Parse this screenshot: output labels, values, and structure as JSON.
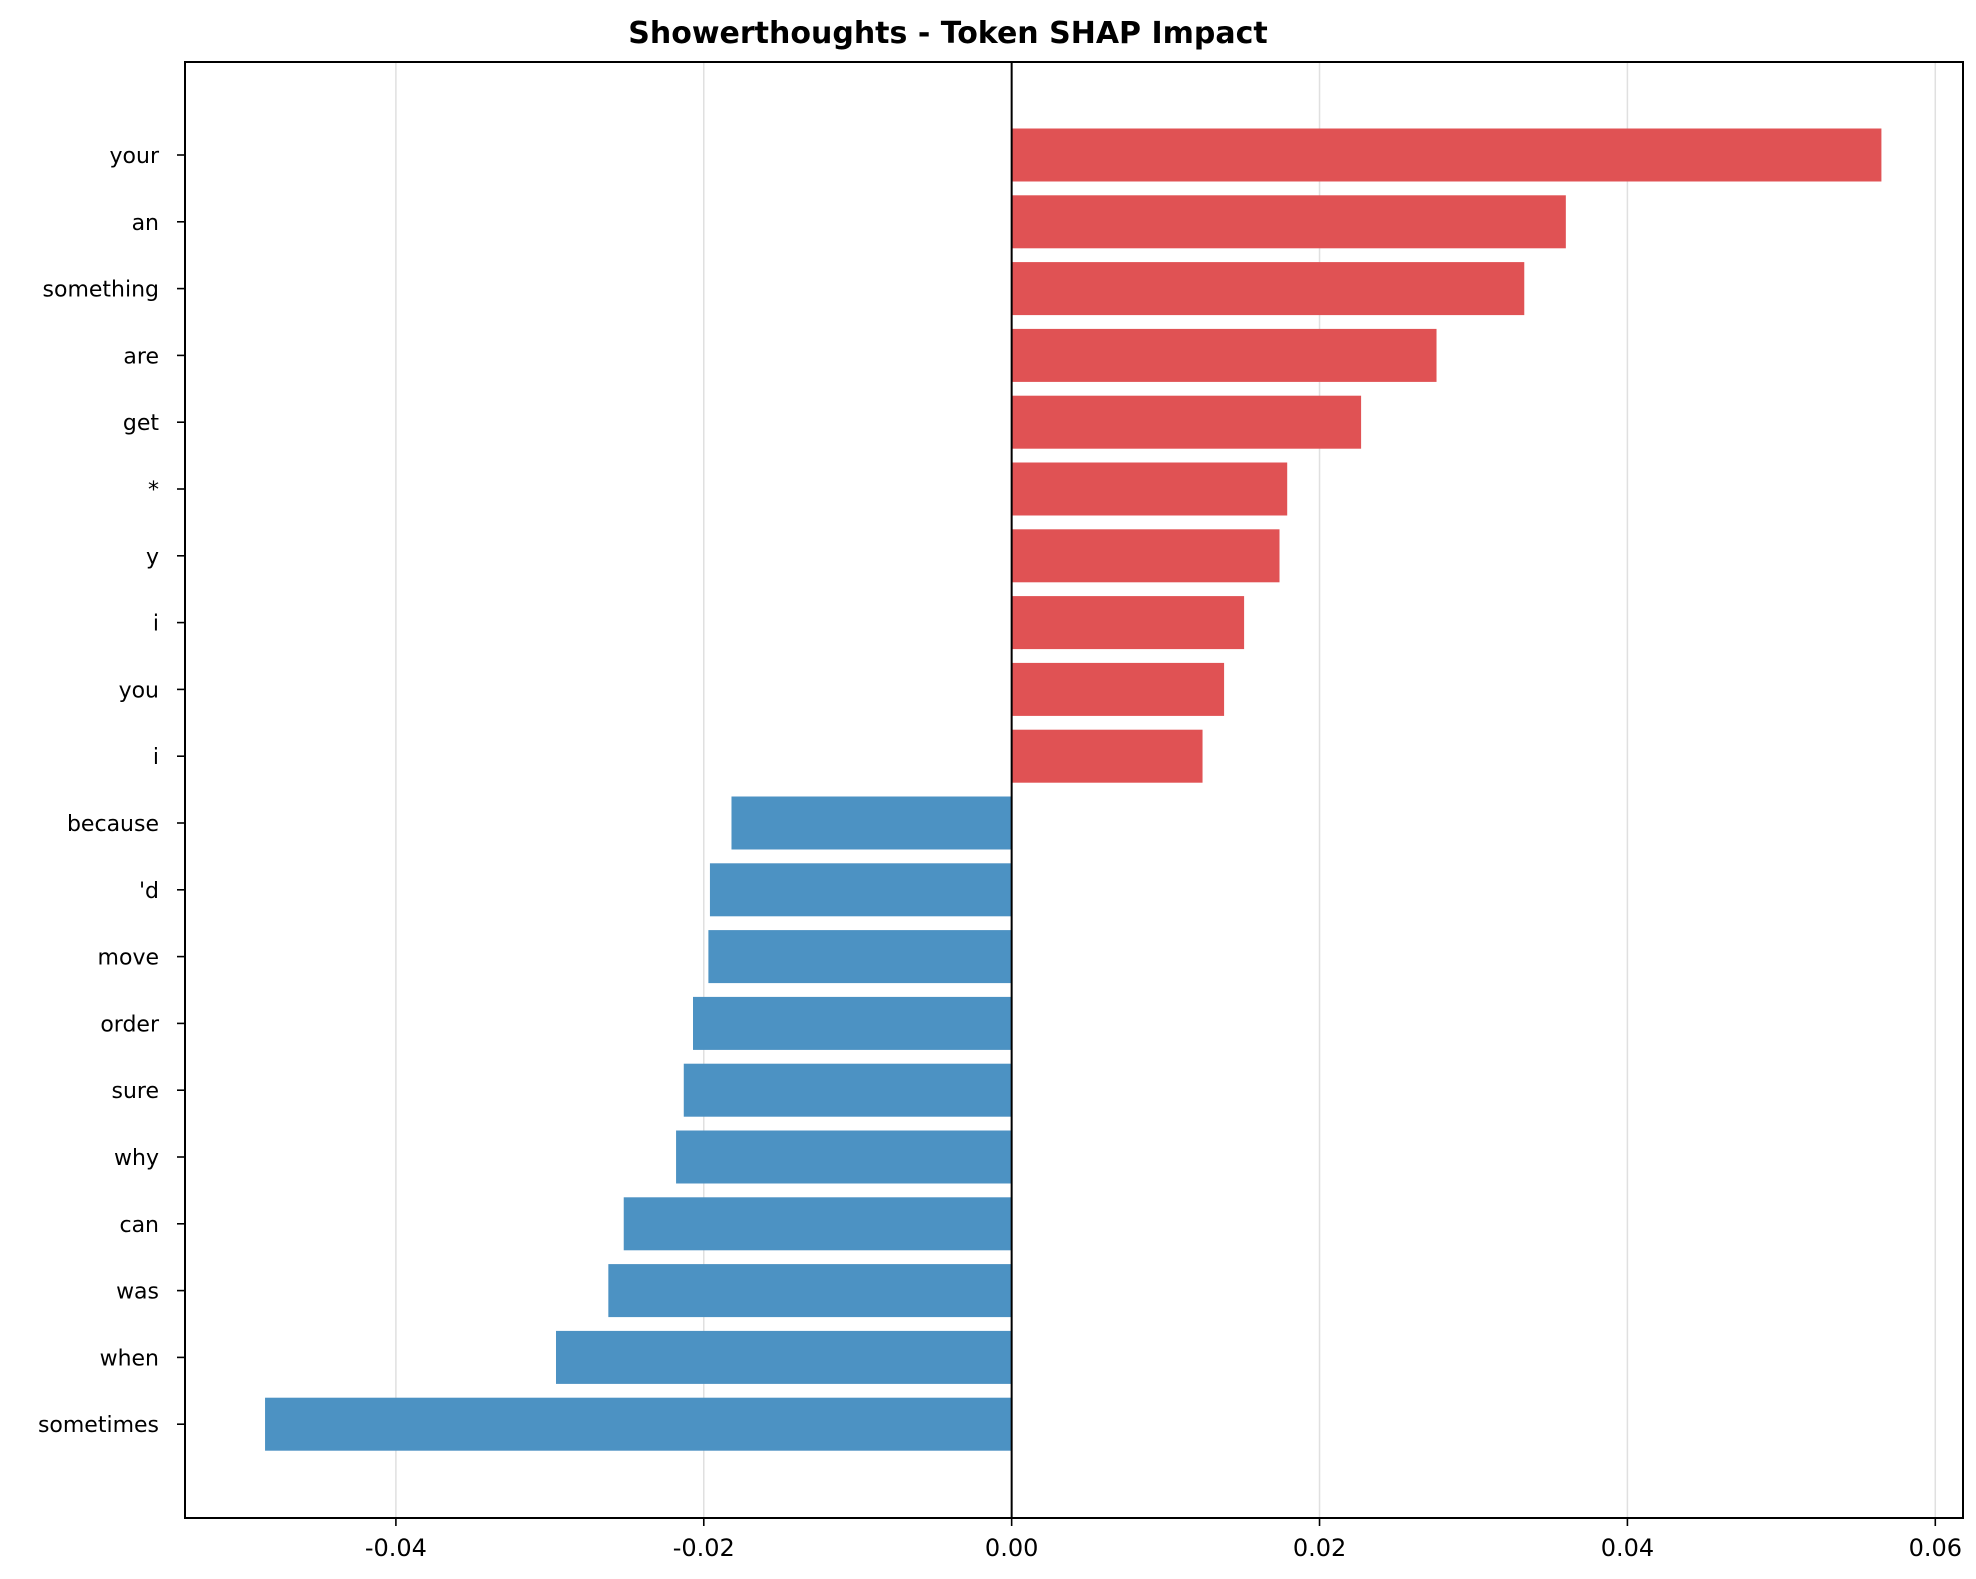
{
  "chart_data": {
    "type": "bar",
    "orientation": "horizontal",
    "title": "Showerthoughts - Token SHAP Impact",
    "xlabel": "",
    "ylabel": "",
    "xlim": [
      -0.0537,
      0.0618
    ],
    "xticks": [
      -0.04,
      -0.02,
      0.0,
      0.02,
      0.04,
      0.06
    ],
    "xtick_labels": [
      "-0.04",
      "-0.02",
      "0.00",
      "0.02",
      "0.04",
      "0.06"
    ],
    "grid": "vertical",
    "legend": "none",
    "categories": [
      "your",
      "an",
      "something",
      "are",
      "get",
      "*",
      "y",
      "i",
      "you",
      "i",
      "because",
      "'d",
      "move",
      "order",
      "sure",
      "why",
      "can",
      "was",
      "when",
      "sometimes"
    ],
    "values": [
      0.0565,
      0.036,
      0.0333,
      0.0276,
      0.0227,
      0.0179,
      0.0174,
      0.0151,
      0.0138,
      0.0124,
      -0.0182,
      -0.0196,
      -0.0197,
      -0.0207,
      -0.0213,
      -0.0218,
      -0.0252,
      -0.0262,
      -0.0296,
      -0.0485
    ],
    "colors": {
      "positive": "#e05254",
      "negative": "#4c92c3",
      "grid": "#e0e0e0",
      "axis": "#000000"
    }
  }
}
